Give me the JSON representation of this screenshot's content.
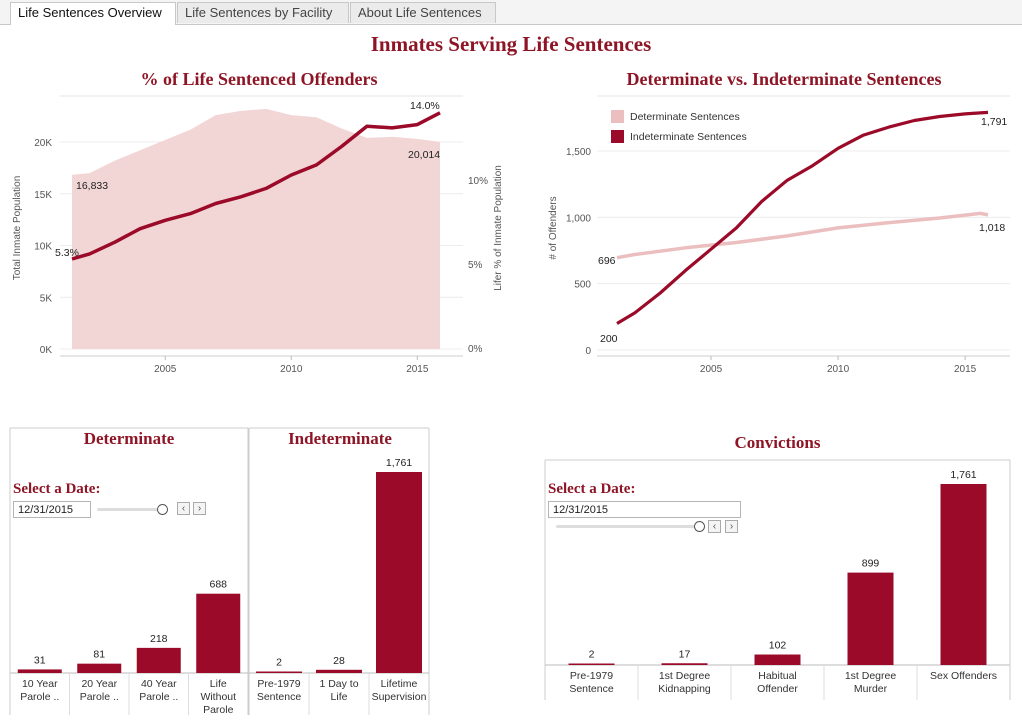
{
  "tabs": [
    {
      "label": "Life Sentences Overview",
      "active": true
    },
    {
      "label": "Life Sentences by Facility",
      "active": false
    },
    {
      "label": "About Life Sentences",
      "active": false
    }
  ],
  "page_title": "Inmates Serving Life Sentences",
  "colors": {
    "accent": "#9b0a28",
    "area": "#f2d6d6",
    "light_line": "#ebbfbf",
    "title": "#8e1525"
  },
  "date_filters": {
    "label": "Select a Date:",
    "left_value": "12/31/2015",
    "right_value": "12/31/2015",
    "prev_icon": "chevron-left-icon",
    "next_icon": "chevron-right-icon"
  },
  "chart_data": [
    {
      "type": "area",
      "title": "% of Life Sentenced Offenders",
      "ylabel": "Total Inmate Population",
      "ylabel_right": "Lifer % of Inmate Population",
      "ylim": [
        0,
        24000
      ],
      "ylim_right": [
        0,
        15
      ],
      "y_ticks": [
        "0K",
        "5K",
        "10K",
        "15K",
        "20K"
      ],
      "y_ticks_right": [
        "0%",
        "5%",
        "10%"
      ],
      "x_ticks": [
        2005,
        2010,
        2015
      ],
      "series": [
        {
          "kind": "area",
          "x": [
            2001.3,
            2002,
            2003,
            2004,
            2005,
            2006,
            2007,
            2008,
            2009,
            2009.5,
            2010,
            2011,
            2012,
            2013,
            2014,
            2015,
            2015.9
          ],
          "values": [
            16833,
            17000,
            18200,
            19200,
            20200,
            21200,
            22600,
            23000,
            23200,
            22900,
            22600,
            22400,
            21300,
            20400,
            20500,
            20300,
            20014
          ]
        },
        {
          "kind": "line",
          "x": [
            2001.3,
            2002,
            2003,
            2004,
            2005,
            2006,
            2007,
            2008,
            2009,
            2010,
            2011,
            2012,
            2013,
            2014,
            2015,
            2015.9
          ],
          "values": [
            5.3,
            5.6,
            6.3,
            7.1,
            7.6,
            8.0,
            8.6,
            9.0,
            9.5,
            10.3,
            10.9,
            12.0,
            13.2,
            13.1,
            13.3,
            14.0
          ]
        }
      ],
      "annotations": [
        {
          "text": "16,833",
          "anchor": "area-start"
        },
        {
          "text": "20,014",
          "anchor": "area-end"
        },
        {
          "text": "5.3%",
          "anchor": "line-start"
        },
        {
          "text": "14.0%",
          "anchor": "line-end"
        }
      ],
      "grid": true
    },
    {
      "type": "line",
      "title": "Determinate vs. Indeterminate Sentences",
      "ylabel": "# of Offenders",
      "ylim": [
        0,
        1850
      ],
      "y_ticks": [
        "0",
        "500",
        "1,000",
        "1,500"
      ],
      "x_ticks": [
        2005,
        2010,
        2015
      ],
      "legend_position": "top-left",
      "series": [
        {
          "name": "Determinate Sentences",
          "x": [
            2001.3,
            2002,
            2004,
            2006,
            2008,
            2010,
            2012,
            2014,
            2015.6,
            2015.9
          ],
          "values": [
            696,
            720,
            770,
            810,
            860,
            920,
            960,
            995,
            1030,
            1018
          ]
        },
        {
          "name": "Indeterminate Sentences",
          "x": [
            2001.3,
            2002,
            2003,
            2004,
            2005,
            2006,
            2007,
            2008,
            2009,
            2010,
            2011,
            2012,
            2013,
            2014,
            2015,
            2015.9
          ],
          "values": [
            200,
            280,
            430,
            600,
            760,
            920,
            1120,
            1280,
            1390,
            1520,
            1620,
            1680,
            1730,
            1760,
            1780,
            1791
          ]
        }
      ],
      "annotations": [
        {
          "text": "696",
          "anchor": "det-start"
        },
        {
          "text": "1,018",
          "anchor": "det-end"
        },
        {
          "text": "200",
          "anchor": "ind-start"
        },
        {
          "text": "1,791",
          "anchor": "ind-end"
        }
      ],
      "grid": true
    },
    {
      "type": "bar",
      "title": "Determinate",
      "categories": [
        "10 Year Parole ..",
        "20 Year Parole ..",
        "40 Year Parole ..",
        "Life Without Parole"
      ],
      "values": [
        31,
        81,
        218,
        688
      ],
      "value_labels": [
        "31",
        "81",
        "218",
        "688"
      ],
      "ylim": [
        0,
        1761
      ]
    },
    {
      "type": "bar",
      "title": "Indeterminate",
      "categories": [
        "Pre-1979 Sentence",
        "1 Day to Life",
        "Lifetime Supervision"
      ],
      "values": [
        2,
        28,
        1761
      ],
      "value_labels": [
        "2",
        "28",
        "1,761"
      ],
      "ylim": [
        0,
        1761
      ]
    },
    {
      "type": "bar",
      "title": "Convictions",
      "categories": [
        "Pre-1979 Sentence",
        "1st Degree Kidnapping",
        "Habitual Offender",
        "1st Degree Murder",
        "Sex Offenders"
      ],
      "values": [
        2,
        17,
        102,
        899,
        1761
      ],
      "value_labels": [
        "2",
        "17",
        "102",
        "899",
        "1,761"
      ],
      "ylim": [
        0,
        1761
      ]
    }
  ]
}
